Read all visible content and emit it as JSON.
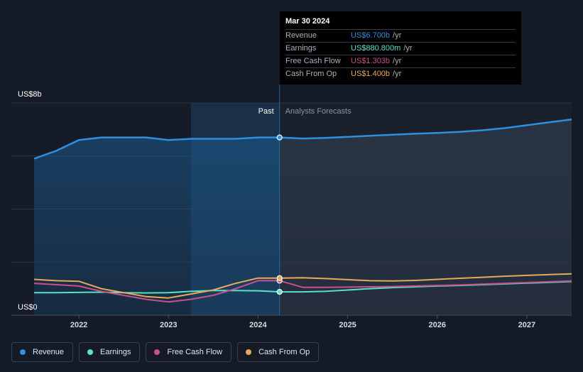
{
  "chart_data": {
    "type": "line",
    "y_axis": {
      "top_label": "US$8b",
      "bottom_label": "US$0",
      "ylim": [
        0,
        8
      ]
    },
    "x_ticks": [
      "2022",
      "2023",
      "2024",
      "2025",
      "2026",
      "2027"
    ],
    "regions": {
      "past_label": "Past",
      "forecast_label": "Analysts Forecasts"
    },
    "past_end_x": 2024.24,
    "series": [
      {
        "name": "Revenue",
        "color": "#2d8fe0",
        "points": [
          [
            2021.5,
            5.9
          ],
          [
            2021.75,
            6.2
          ],
          [
            2022.0,
            6.6
          ],
          [
            2022.25,
            6.7
          ],
          [
            2022.5,
            6.7
          ],
          [
            2022.75,
            6.7
          ],
          [
            2023.0,
            6.6
          ],
          [
            2023.25,
            6.65
          ],
          [
            2023.5,
            6.65
          ],
          [
            2023.75,
            6.65
          ],
          [
            2024.0,
            6.7
          ],
          [
            2024.24,
            6.7
          ],
          [
            2024.5,
            6.66
          ],
          [
            2024.75,
            6.68
          ],
          [
            2025.0,
            6.72
          ],
          [
            2025.25,
            6.76
          ],
          [
            2025.5,
            6.8
          ],
          [
            2025.75,
            6.84
          ],
          [
            2026.0,
            6.87
          ],
          [
            2026.25,
            6.91
          ],
          [
            2026.5,
            6.97
          ],
          [
            2026.75,
            7.05
          ],
          [
            2027.0,
            7.16
          ],
          [
            2027.25,
            7.27
          ],
          [
            2027.5,
            7.38
          ]
        ]
      },
      {
        "name": "Earnings",
        "color": "#59e0c5",
        "points": [
          [
            2021.5,
            0.85
          ],
          [
            2021.75,
            0.85
          ],
          [
            2022.0,
            0.86
          ],
          [
            2022.25,
            0.87
          ],
          [
            2022.5,
            0.85
          ],
          [
            2022.75,
            0.84
          ],
          [
            2023.0,
            0.85
          ],
          [
            2023.25,
            0.9
          ],
          [
            2023.5,
            0.93
          ],
          [
            2023.75,
            0.93
          ],
          [
            2024.0,
            0.92
          ],
          [
            2024.24,
            0.88
          ],
          [
            2024.5,
            0.88
          ],
          [
            2024.75,
            0.9
          ],
          [
            2025.0,
            0.95
          ],
          [
            2025.25,
            1.0
          ],
          [
            2025.5,
            1.04
          ],
          [
            2025.75,
            1.07
          ],
          [
            2026.0,
            1.1
          ],
          [
            2026.25,
            1.12
          ],
          [
            2026.5,
            1.15
          ],
          [
            2026.75,
            1.18
          ],
          [
            2027.0,
            1.21
          ],
          [
            2027.25,
            1.24
          ],
          [
            2027.5,
            1.27
          ]
        ]
      },
      {
        "name": "Free Cash Flow",
        "color": "#c9508a",
        "points": [
          [
            2021.5,
            1.2
          ],
          [
            2021.75,
            1.15
          ],
          [
            2022.0,
            1.1
          ],
          [
            2022.25,
            0.9
          ],
          [
            2022.5,
            0.75
          ],
          [
            2022.75,
            0.6
          ],
          [
            2023.0,
            0.5
          ],
          [
            2023.25,
            0.6
          ],
          [
            2023.5,
            0.75
          ],
          [
            2023.75,
            1.0
          ],
          [
            2024.0,
            1.3
          ],
          [
            2024.24,
            1.303
          ],
          [
            2024.5,
            1.05
          ],
          [
            2024.75,
            1.05
          ],
          [
            2025.0,
            1.06
          ],
          [
            2025.25,
            1.07
          ],
          [
            2025.5,
            1.08
          ],
          [
            2025.75,
            1.1
          ],
          [
            2026.0,
            1.12
          ],
          [
            2026.25,
            1.14
          ],
          [
            2026.5,
            1.17
          ],
          [
            2026.75,
            1.2
          ],
          [
            2027.0,
            1.23
          ],
          [
            2027.25,
            1.26
          ],
          [
            2027.5,
            1.29
          ]
        ]
      },
      {
        "name": "Cash From Op",
        "color": "#e8a95a",
        "points": [
          [
            2021.5,
            1.35
          ],
          [
            2021.75,
            1.3
          ],
          [
            2022.0,
            1.28
          ],
          [
            2022.25,
            1.0
          ],
          [
            2022.5,
            0.85
          ],
          [
            2022.75,
            0.7
          ],
          [
            2023.0,
            0.65
          ],
          [
            2023.25,
            0.8
          ],
          [
            2023.5,
            0.95
          ],
          [
            2023.75,
            1.2
          ],
          [
            2024.0,
            1.4
          ],
          [
            2024.24,
            1.4
          ],
          [
            2024.5,
            1.41
          ],
          [
            2024.75,
            1.38
          ],
          [
            2025.0,
            1.34
          ],
          [
            2025.25,
            1.3
          ],
          [
            2025.5,
            1.29
          ],
          [
            2025.75,
            1.31
          ],
          [
            2026.0,
            1.35
          ],
          [
            2026.25,
            1.39
          ],
          [
            2026.5,
            1.43
          ],
          [
            2026.75,
            1.47
          ],
          [
            2027.0,
            1.5
          ],
          [
            2027.25,
            1.53
          ],
          [
            2027.5,
            1.56
          ]
        ]
      }
    ],
    "grid": true,
    "legend_position": "bottom-left"
  },
  "tooltip": {
    "date": "Mar 30 2024",
    "rows": [
      {
        "name": "Revenue",
        "value": "US$6.700b",
        "unit": "/yr",
        "color": "#2d8fe0"
      },
      {
        "name": "Earnings",
        "value": "US$880.800m",
        "unit": "/yr",
        "color": "#59e0c5"
      },
      {
        "name": "Free Cash Flow",
        "value": "US$1.303b",
        "unit": "/yr",
        "color": "#c9508a"
      },
      {
        "name": "Cash From Op",
        "value": "US$1.400b",
        "unit": "/yr",
        "color": "#e8a95a"
      }
    ]
  },
  "legend": [
    {
      "label": "Revenue",
      "color": "#2d8fe0"
    },
    {
      "label": "Earnings",
      "color": "#59e0c5"
    },
    {
      "label": "Free Cash Flow",
      "color": "#c9508a"
    },
    {
      "label": "Cash From Op",
      "color": "#e8a95a"
    }
  ]
}
